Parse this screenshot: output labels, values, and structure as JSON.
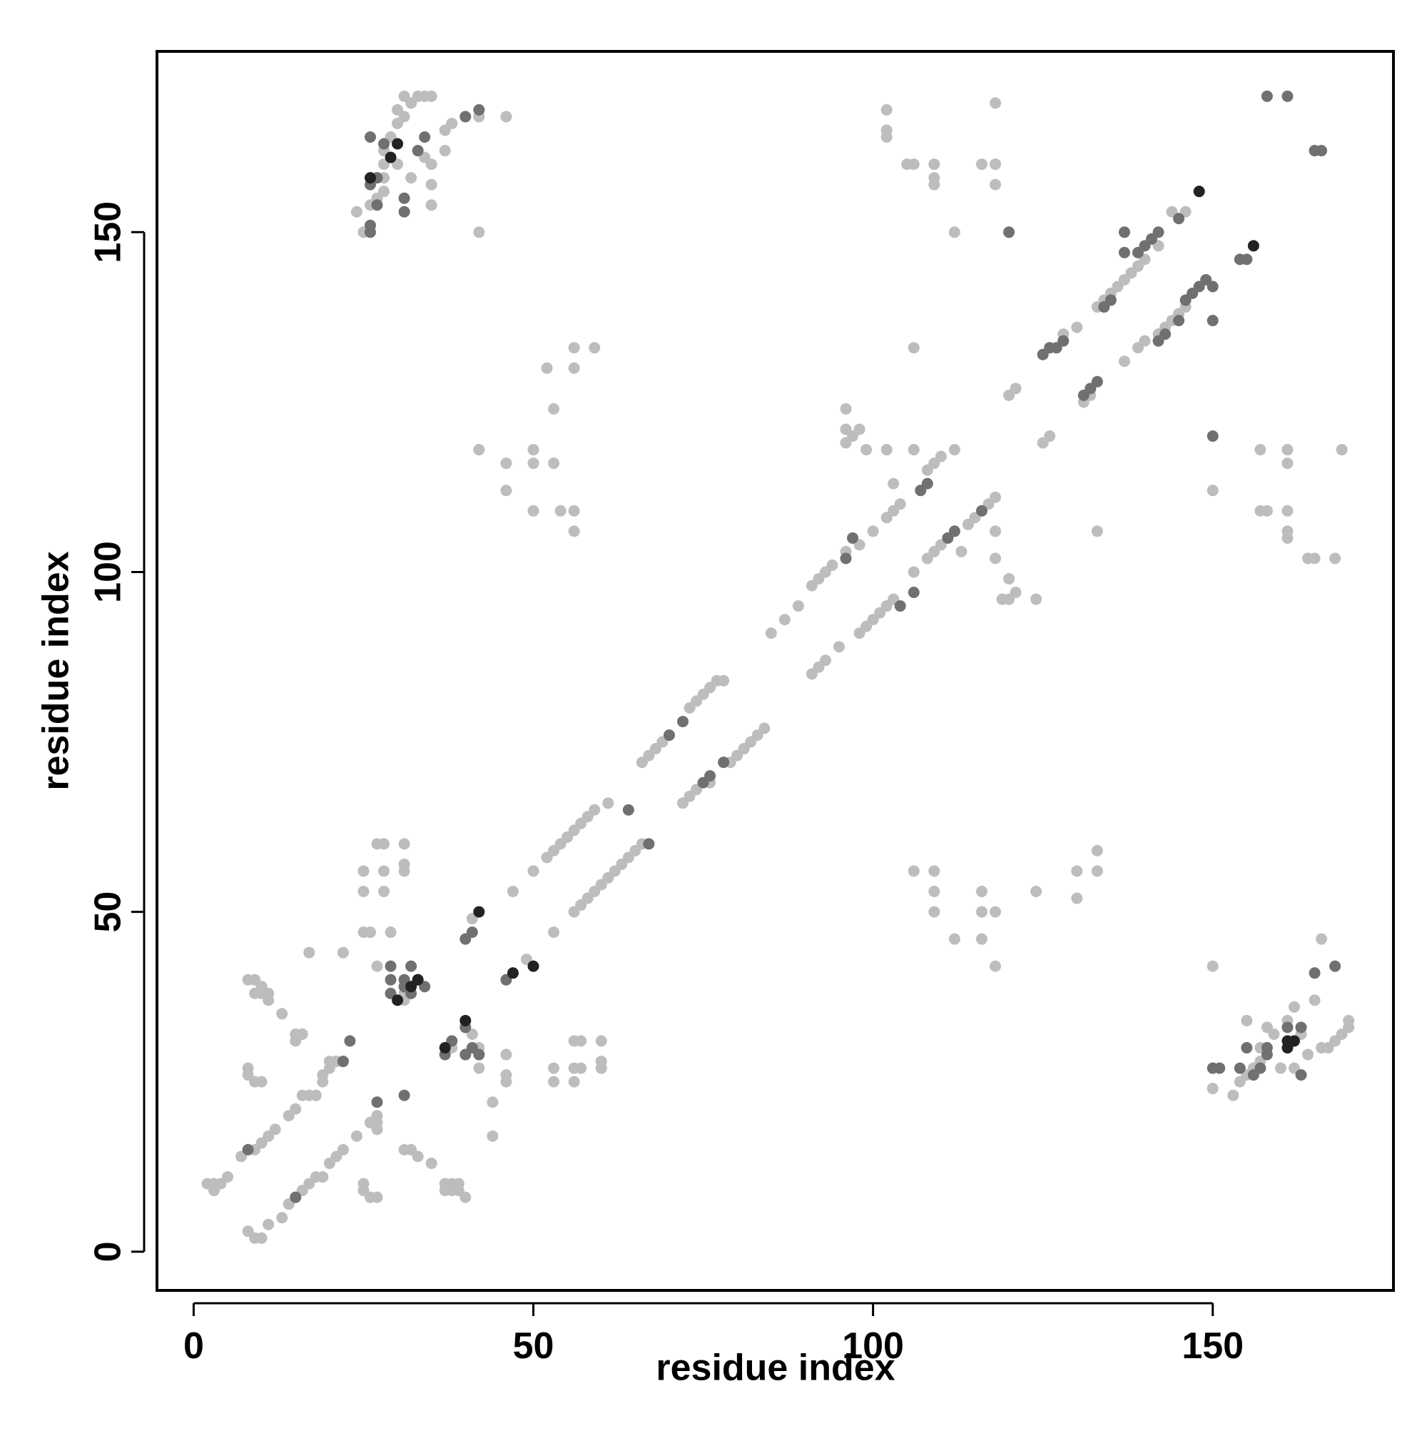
{
  "chart_data": {
    "type": "scatter",
    "xlabel": "residue index",
    "ylabel": "residue index",
    "xlim": [
      -5.4,
      176.6
    ],
    "ylim": [
      -5.7,
      176.6
    ],
    "xticks": [
      0,
      50,
      100,
      150
    ],
    "yticks": [
      0,
      50,
      100,
      150
    ],
    "series": [
      {
        "color": "#bdbdbd",
        "x": [
          2,
          3,
          4,
          5,
          3,
          7,
          9,
          10,
          11,
          12,
          14,
          15,
          17,
          19,
          20,
          21,
          22,
          41,
          47,
          50,
          52,
          53,
          54,
          55,
          56,
          57,
          58,
          59,
          61,
          66,
          67,
          68,
          69,
          70,
          73,
          74,
          75,
          76,
          77,
          78,
          85,
          87,
          89,
          91,
          92,
          93,
          94,
          96,
          98,
          100,
          102,
          103,
          104,
          108,
          109,
          110,
          112,
          120,
          121,
          128,
          130,
          133,
          134,
          135,
          136,
          137,
          138,
          139,
          140,
          142,
          144,
          146,
          8,
          9,
          10,
          11,
          13,
          14,
          15,
          16,
          17,
          18,
          19,
          20,
          21,
          22,
          24,
          26,
          27,
          49,
          53,
          56,
          57,
          58,
          59,
          60,
          61,
          62,
          63,
          64,
          65,
          66,
          72,
          73,
          74,
          76,
          79,
          80,
          81,
          82,
          83,
          84,
          91,
          92,
          93,
          95,
          98,
          99,
          100,
          101,
          102,
          103,
          106,
          108,
          109,
          110,
          114,
          115,
          116,
          117,
          118,
          125,
          126,
          131,
          132,
          137,
          139,
          140,
          142,
          143,
          144,
          145,
          146,
          24,
          25,
          26,
          27,
          28,
          28,
          28,
          30,
          31,
          32,
          33,
          34,
          35,
          31,
          30,
          29,
          32,
          34,
          35,
          35,
          37,
          37,
          38,
          42,
          46,
          42,
          35,
          30,
          28,
          150,
          153,
          154,
          155,
          156,
          157,
          157,
          159,
          161,
          162,
          163,
          164,
          166,
          167,
          168,
          169,
          170,
          170,
          165,
          166,
          150,
          155,
          158,
          160,
          162,
          42,
          46,
          46,
          50,
          50,
          50,
          52,
          53,
          53,
          54,
          56,
          56,
          56,
          56,
          59,
          106,
          109,
          109,
          109,
          112,
          116,
          116,
          116,
          118,
          118,
          124,
          130,
          130,
          133,
          133,
          150,
          157,
          157,
          158,
          161,
          161,
          161,
          161,
          161,
          164,
          165,
          168,
          169,
          133,
          106,
          102,
          102,
          102,
          105,
          106,
          109,
          109,
          109,
          112,
          116,
          118,
          118,
          118,
          96,
          96,
          97,
          98,
          99,
          96,
          102,
          106,
          103,
          118,
          118,
          120,
          121,
          120,
          119,
          124,
          113,
          8,
          9,
          10,
          10,
          11,
          11,
          9,
          8,
          8,
          9,
          10,
          13,
          15,
          16,
          15,
          16,
          17,
          18,
          19,
          20,
          21,
          22,
          25,
          25,
          25,
          26,
          27,
          28,
          28,
          28,
          27,
          29,
          31,
          31,
          31,
          25,
          25,
          26,
          27,
          26,
          27,
          27,
          31,
          32,
          33,
          35,
          37,
          38,
          38,
          39,
          39,
          40,
          37,
          44,
          44,
          42,
          42,
          46,
          46,
          46,
          53,
          53,
          56,
          56,
          56,
          57,
          57,
          60,
          60,
          60,
          41,
          42,
          38,
          38,
          31,
          32,
          31
        ],
        "y": [
          10,
          10,
          10,
          11,
          9,
          14,
          15,
          16,
          17,
          18,
          20,
          21,
          23,
          25,
          27,
          28,
          28,
          49,
          53,
          56,
          58,
          59,
          60,
          61,
          62,
          63,
          64,
          65,
          66,
          72,
          73,
          74,
          75,
          76,
          80,
          81,
          82,
          83,
          84,
          84,
          91,
          93,
          95,
          98,
          99,
          100,
          101,
          103,
          104,
          106,
          108,
          109,
          110,
          115,
          116,
          117,
          118,
          126,
          127,
          135,
          136,
          139,
          140,
          141,
          142,
          143,
          144,
          145,
          146,
          148,
          153,
          153,
          3,
          2,
          2,
          4,
          5,
          7,
          8,
          9,
          10,
          11,
          11,
          13,
          14,
          15,
          17,
          19,
          20,
          43,
          47,
          50,
          51,
          52,
          53,
          54,
          55,
          56,
          57,
          58,
          59,
          60,
          66,
          67,
          68,
          69,
          72,
          73,
          74,
          75,
          76,
          77,
          85,
          86,
          87,
          89,
          91,
          92,
          93,
          94,
          95,
          96,
          100,
          102,
          103,
          104,
          107,
          108,
          109,
          110,
          111,
          119,
          120,
          125,
          126,
          131,
          133,
          134,
          135,
          136,
          137,
          138,
          139,
          153,
          150,
          154,
          155,
          156,
          160,
          162,
          166,
          167,
          169,
          170,
          170,
          170,
          170,
          168,
          164,
          158,
          161,
          160,
          157,
          165,
          162,
          166,
          167,
          167,
          150,
          154,
          160,
          158,
          24,
          23,
          25,
          26,
          27,
          28,
          30,
          32,
          34,
          36,
          32,
          29,
          30,
          30,
          31,
          32,
          33,
          34,
          37,
          46,
          42,
          34,
          33,
          27,
          27,
          118,
          116,
          112,
          118,
          116,
          109,
          130,
          124,
          116,
          109,
          133,
          130,
          106,
          109,
          133,
          56,
          56,
          53,
          50,
          46,
          53,
          50,
          46,
          50,
          42,
          53,
          56,
          52,
          59,
          56,
          112,
          118,
          109,
          109,
          118,
          116,
          109,
          106,
          105,
          102,
          102,
          102,
          118,
          106,
          133,
          168,
          165,
          164,
          160,
          160,
          160,
          158,
          157,
          150,
          160,
          160,
          157,
          169,
          124,
          121,
          120,
          121,
          118,
          119,
          118,
          118,
          113,
          106,
          102,
          99,
          97,
          96,
          96,
          96,
          103,
          40,
          40,
          39,
          38,
          38,
          37,
          38,
          27,
          26,
          25,
          25,
          35,
          32,
          32,
          31,
          23,
          44,
          23,
          26,
          28,
          28,
          44,
          53,
          56,
          47,
          47,
          60,
          60,
          56,
          53,
          42,
          47,
          60,
          57,
          56,
          10,
          9,
          8,
          8,
          19,
          18,
          19,
          15,
          15,
          14,
          13,
          10,
          10,
          9,
          9,
          10,
          8,
          9,
          17,
          22,
          27,
          29,
          25,
          26,
          29,
          25,
          27,
          25,
          27,
          31,
          31,
          27,
          27,
          28,
          31,
          32,
          30,
          31,
          30,
          38,
          39,
          37
        ]
      },
      {
        "color": "#707070",
        "x": [
          8,
          15,
          22,
          23,
          27,
          31,
          29,
          29,
          29,
          31,
          32,
          33,
          37,
          38,
          40,
          41,
          42,
          40,
          40,
          41,
          46,
          64,
          67,
          70,
          72,
          75,
          76,
          78,
          96,
          97,
          104,
          106,
          107,
          108,
          111,
          112,
          116,
          120,
          125,
          126,
          127,
          128,
          131,
          132,
          133,
          134,
          135,
          137,
          137,
          139,
          140,
          141,
          142,
          145,
          142,
          143,
          145,
          146,
          147,
          148,
          149,
          150,
          150,
          150,
          154,
          155,
          158,
          161,
          165,
          166,
          165,
          168,
          163,
          163,
          161,
          158,
          158,
          157,
          156,
          155,
          154,
          150,
          151,
          26,
          26,
          27,
          26,
          27,
          26,
          28,
          31,
          31,
          33,
          34,
          40,
          42,
          34,
          32,
          31
        ],
        "y": [
          15,
          8,
          28,
          31,
          22,
          23,
          38,
          40,
          42,
          40,
          42,
          40,
          29,
          31,
          33,
          30,
          29,
          29,
          46,
          47,
          40,
          65,
          60,
          76,
          78,
          69,
          70,
          72,
          102,
          105,
          95,
          97,
          112,
          113,
          105,
          106,
          109,
          150,
          132,
          133,
          133,
          134,
          126,
          127,
          128,
          139,
          140,
          147,
          150,
          147,
          148,
          149,
          150,
          152,
          134,
          135,
          137,
          140,
          141,
          142,
          143,
          142,
          137,
          120,
          146,
          146,
          170,
          170,
          162,
          162,
          41,
          42,
          33,
          26,
          33,
          29,
          30,
          27,
          26,
          30,
          27,
          27,
          27,
          150,
          151,
          154,
          157,
          158,
          164,
          163,
          153,
          155,
          162,
          164,
          167,
          168,
          39,
          38,
          39
        ]
      },
      {
        "color": "#222222",
        "x": [
          26,
          30,
          29,
          33,
          32,
          37,
          40,
          42,
          47,
          50,
          148,
          156,
          161,
          161,
          162,
          30
        ],
        "y": [
          158,
          163,
          161,
          40,
          39,
          30,
          34,
          50,
          41,
          42,
          156,
          148,
          30,
          31,
          31,
          37
        ]
      }
    ]
  }
}
